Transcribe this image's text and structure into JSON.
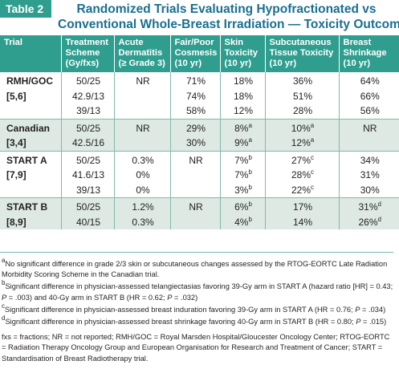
{
  "title": {
    "tag": "Table 2",
    "line1": "Randomized Trials Evaluating Hypofractionated vs",
    "line2": "Conventional Whole-Breast Irradiation — Toxicity Outcomes"
  },
  "headers": [
    [
      "Trial",
      ""
    ],
    [
      "Treatment",
      "Scheme",
      "(Gy/fxs)"
    ],
    [
      "Acute",
      "Dermatitis",
      "(≥ Grade 3)"
    ],
    [
      "Fair/Poor",
      "Cosmesis",
      "(10 yr)"
    ],
    [
      "Skin",
      "Toxicity",
      "(10 yr)"
    ],
    [
      "Subcutaneous",
      "Tissue Toxicity",
      "(10 yr)"
    ],
    [
      "Breast",
      "Shrinkage",
      "(10 yr)"
    ]
  ],
  "groups": [
    {
      "trial": [
        "RMH/GOC",
        "[5,6]"
      ],
      "rows": [
        {
          "scheme": "50/25",
          "dermatitis": "NR",
          "cosmesis": "71%",
          "skin": "18%",
          "skin_sup": "",
          "subq": "36%",
          "subq_sup": "",
          "shrink": "64%",
          "shrink_sup": ""
        },
        {
          "scheme": "42.9/13",
          "dermatitis": "",
          "cosmesis": "74%",
          "skin": "18%",
          "skin_sup": "",
          "subq": "51%",
          "subq_sup": "",
          "shrink": "66%",
          "shrink_sup": ""
        },
        {
          "scheme": "39/13",
          "dermatitis": "",
          "cosmesis": "58%",
          "skin": "12%",
          "skin_sup": "",
          "subq": "28%",
          "subq_sup": "",
          "shrink": "56%",
          "shrink_sup": ""
        }
      ]
    },
    {
      "trial": [
        "Canadian",
        "[3,4]"
      ],
      "rows": [
        {
          "scheme": "50/25",
          "dermatitis": "NR",
          "cosmesis": "29%",
          "skin": "8%",
          "skin_sup": "a",
          "subq": "10%",
          "subq_sup": "a",
          "shrink": "NR",
          "shrink_sup": ""
        },
        {
          "scheme": "42.5/16",
          "dermatitis": "",
          "cosmesis": "30%",
          "skin": "9%",
          "skin_sup": "a",
          "subq": "12%",
          "subq_sup": "a",
          "shrink": "",
          "shrink_sup": ""
        }
      ]
    },
    {
      "trial": [
        "START A",
        "[7,9]"
      ],
      "rows": [
        {
          "scheme": "50/25",
          "dermatitis": "0.3%",
          "cosmesis": "NR",
          "skin": "7%",
          "skin_sup": "b",
          "subq": "27%",
          "subq_sup": "c",
          "shrink": "34%",
          "shrink_sup": ""
        },
        {
          "scheme": "41.6/13",
          "dermatitis": "0%",
          "cosmesis": "",
          "skin": "7%",
          "skin_sup": "b",
          "subq": "28%",
          "subq_sup": "c",
          "shrink": "31%",
          "shrink_sup": ""
        },
        {
          "scheme": "39/13",
          "dermatitis": "0%",
          "cosmesis": "",
          "skin": "3%",
          "skin_sup": "b",
          "subq": "22%",
          "subq_sup": "c",
          "shrink": "30%",
          "shrink_sup": ""
        }
      ]
    },
    {
      "trial": [
        "START B",
        "[8,9]"
      ],
      "rows": [
        {
          "scheme": "50/25",
          "dermatitis": "1.2%",
          "cosmesis": "NR",
          "skin": "6%",
          "skin_sup": "b",
          "subq": "17%",
          "subq_sup": "",
          "shrink": "31%",
          "shrink_sup": "d"
        },
        {
          "scheme": "40/15",
          "dermatitis": "0.3%",
          "cosmesis": "",
          "skin": "4%",
          "skin_sup": "b",
          "subq": "14%",
          "subq_sup": "",
          "shrink": "26%",
          "shrink_sup": "d"
        }
      ]
    }
  ],
  "footnotes": {
    "a": {
      "mark": "a",
      "text": "No significant difference in grade 2/3 skin or subcutaneous changes assessed by the RTOG-EORTC Late Radiation Morbidity Scoring Scheme in the Canadian trial."
    },
    "b": {
      "mark": "b",
      "text": "Significant difference in physician-assessed telangiectasias favoring 39-Gy arm in START A (hazard ratio [HR] = 0.43; P = .003) and 40-Gy arm in START B (HR = 0.62; P = .032)"
    },
    "c": {
      "mark": "c",
      "text": "Significant difference in physician-assessed breast induration favoring 39-Gy arm in START A (HR = 0.76; P = .034)"
    },
    "d": {
      "mark": "d",
      "text": "Significant difference in physician-assessed breast shrinkage favoring 40-Gy arm in START B (HR = 0.80; P = .015)"
    },
    "abbreviations": "fxs = fractions; NR = not reported; RMH/GOC = Royal Marsden Hospital/Gloucester Oncology Center; RTOG-EORTC = Radiation Therapy Oncology Group and European Organisation for Research and Treatment of Cancer; START = Standardisation of Breast Radiotherapy trial."
  },
  "colors": {
    "header": "#2f9e8f",
    "title": "#1a6f8f",
    "shade": "#dde9e2"
  }
}
